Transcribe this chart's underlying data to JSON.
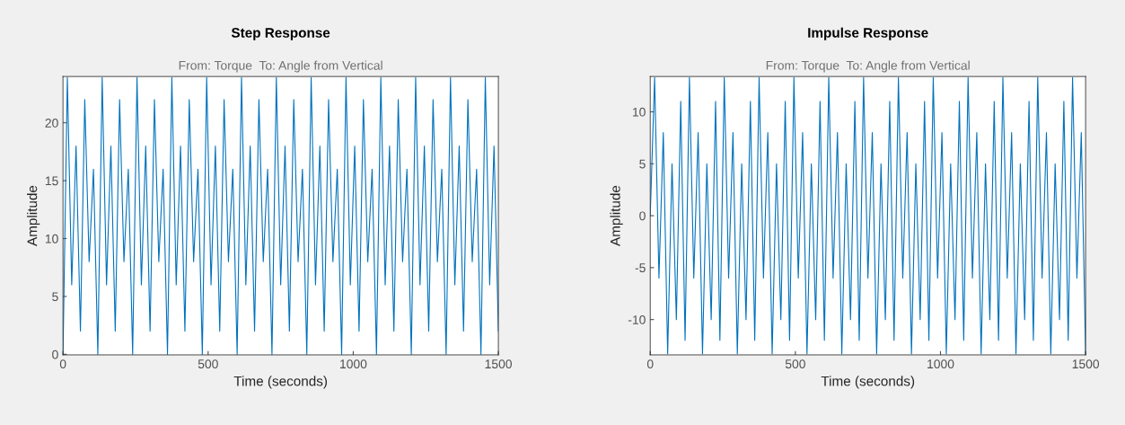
{
  "chart_data": [
    {
      "type": "line",
      "title": "Step Response",
      "subtitle": "From: Torque  To: Angle from Vertical",
      "xlabel": "Time (seconds)",
      "ylabel": "Amplitude",
      "x": [
        0,
        15,
        30,
        45,
        60,
        75,
        90,
        105,
        120,
        135,
        150,
        165,
        180,
        195,
        210,
        225,
        240,
        255,
        270,
        285,
        300,
        315,
        330,
        345,
        360,
        375,
        390,
        405,
        420,
        435,
        450,
        465,
        480,
        495,
        510,
        525,
        540,
        555,
        570,
        585,
        600,
        615,
        630,
        645,
        660,
        675,
        690,
        705,
        720,
        735,
        750,
        765,
        780,
        795,
        810,
        825,
        840,
        855,
        870,
        885,
        900,
        915,
        930,
        945,
        960,
        975,
        990,
        1005,
        1020,
        1035,
        1050,
        1065,
        1080,
        1095,
        1110,
        1125,
        1140,
        1155,
        1170,
        1185,
        1200,
        1215,
        1230,
        1245,
        1260,
        1275,
        1290,
        1305,
        1320,
        1335,
        1350,
        1365,
        1380,
        1395,
        1410,
        1425,
        1440,
        1455,
        1470,
        1485,
        1500
      ],
      "series": [
        {
          "color": "#0072bd",
          "values": [
            0,
            23.9,
            6,
            18,
            2,
            22,
            8,
            16,
            0,
            23.9,
            6,
            18,
            2,
            22,
            8,
            16,
            0,
            23.9,
            6,
            18,
            2,
            22,
            8,
            16,
            0,
            23.9,
            6,
            18,
            2,
            22,
            8,
            16,
            0,
            23.9,
            6,
            18,
            2,
            22,
            8,
            16,
            0,
            23.9,
            6,
            18,
            2,
            22,
            8,
            16,
            0,
            23.9,
            6,
            18,
            2,
            22,
            8,
            16,
            0,
            23.9,
            6,
            18,
            2,
            22,
            8,
            16,
            0,
            23.9,
            6,
            18,
            2,
            22,
            8,
            16,
            0,
            23.9,
            6,
            18,
            2,
            22,
            8,
            16,
            0,
            23.9,
            6,
            18,
            2,
            22,
            8,
            16,
            0,
            23.9,
            6,
            18,
            2,
            22,
            8,
            16,
            0,
            23.9,
            6,
            18,
            2
          ]
        }
      ],
      "xlim": [
        0,
        1500
      ],
      "xticks": [
        0,
        500,
        1000,
        1500
      ],
      "ylim": [
        -0.05,
        24
      ],
      "yticks": [
        0,
        5,
        10,
        15,
        20
      ],
      "grid": false
    },
    {
      "type": "line",
      "title": "Impulse Response",
      "subtitle": "From: Torque  To: Angle from Vertical",
      "xlabel": "Time (seconds)",
      "ylabel": "Amplitude",
      "x": [
        0,
        15,
        30,
        45,
        60,
        75,
        90,
        105,
        120,
        135,
        150,
        165,
        180,
        195,
        210,
        225,
        240,
        255,
        270,
        285,
        300,
        315,
        330,
        345,
        360,
        375,
        390,
        405,
        420,
        435,
        450,
        465,
        480,
        495,
        510,
        525,
        540,
        555,
        570,
        585,
        600,
        615,
        630,
        645,
        660,
        675,
        690,
        705,
        720,
        735,
        750,
        765,
        780,
        795,
        810,
        825,
        840,
        855,
        870,
        885,
        900,
        915,
        930,
        945,
        960,
        975,
        990,
        1005,
        1020,
        1035,
        1050,
        1065,
        1080,
        1095,
        1110,
        1125,
        1140,
        1155,
        1170,
        1185,
        1200,
        1215,
        1230,
        1245,
        1260,
        1275,
        1290,
        1305,
        1320,
        1335,
        1350,
        1365,
        1380,
        1395,
        1410,
        1425,
        1440,
        1455,
        1470,
        1485,
        1500
      ],
      "series": [
        {
          "color": "#0072bd",
          "values": [
            0,
            13.3,
            -6,
            8,
            -13.3,
            5,
            -10,
            11,
            -12,
            13.3,
            -6,
            8,
            -13.3,
            5,
            -10,
            11,
            -12,
            13.3,
            -6,
            8,
            -13.3,
            5,
            -10,
            11,
            -12,
            13.3,
            -6,
            8,
            -13.3,
            5,
            -10,
            11,
            -12,
            13.3,
            -6,
            8,
            -13.3,
            5,
            -10,
            11,
            -12,
            13.3,
            -6,
            8,
            -13.3,
            5,
            -10,
            11,
            -12,
            13.3,
            -6,
            8,
            -13.3,
            5,
            -10,
            11,
            -12,
            13.3,
            -6,
            8,
            -13.3,
            5,
            -10,
            11,
            -12,
            13.3,
            -6,
            8,
            -13.3,
            5,
            -10,
            11,
            -12,
            13.3,
            -6,
            8,
            -13.3,
            5,
            -10,
            11,
            -12,
            13.3,
            -6,
            8,
            -13.3,
            5,
            -10,
            11,
            -12,
            13.3,
            -6,
            8,
            -13.3,
            5,
            -10,
            11,
            -12,
            13.3,
            -6,
            8,
            -13.3
          ]
        }
      ],
      "xlim": [
        0,
        1500
      ],
      "xticks": [
        0,
        500,
        1000,
        1500
      ],
      "ylim": [
        -13.4,
        13.4
      ],
      "yticks": [
        -10,
        -5,
        0,
        5,
        10
      ],
      "grid": false
    }
  ]
}
